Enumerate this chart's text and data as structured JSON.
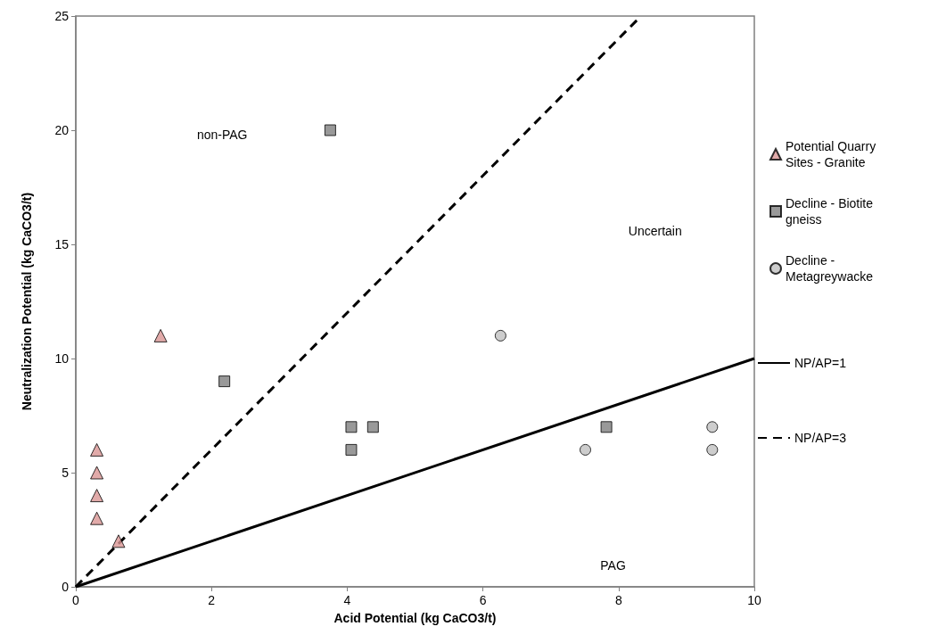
{
  "chart_data": {
    "type": "scatter",
    "xlabel": "Acid Potential (kg CaCO3/t)",
    "ylabel": "Neutralization Potential (kg CaCO3/t)",
    "xlim": [
      0,
      10
    ],
    "xticks": [
      0,
      2,
      4,
      6,
      8,
      10
    ],
    "ylim": [
      0,
      25
    ],
    "yticks": [
      0,
      5,
      10,
      15,
      20,
      25
    ],
    "grid": false,
    "legend": "right",
    "annotations": [
      "non-PAG",
      "Uncertain",
      "PAG"
    ],
    "series": [
      {
        "name": "Potential Quarry Sites - Granite",
        "color": "#d99594",
        "marker": "triangle",
        "x": [
          0.31,
          0.31,
          0.31,
          0.31,
          0.63,
          1.25
        ],
        "values": [
          6,
          5,
          4,
          3,
          2,
          11
        ]
      },
      {
        "name": "Decline - Biotite gneiss",
        "color": "#808080",
        "marker": "square",
        "x": [
          2.19,
          3.75,
          4.06,
          4.06,
          4.38,
          7.82
        ],
        "values": [
          9,
          20,
          7,
          6,
          7,
          7
        ]
      },
      {
        "name": "Decline - Metagreywacke",
        "color": "#c0c0c0",
        "marker": "circle",
        "x": [
          6.26,
          7.51,
          9.38,
          9.38
        ],
        "values": [
          11,
          6,
          7,
          6
        ]
      },
      {
        "name": "NP/AP=1",
        "type": "line",
        "color": "#000000",
        "marker": "none",
        "line_style": "solid",
        "x": [
          0,
          10
        ],
        "values": [
          0,
          10
        ]
      },
      {
        "name": "NP/AP=3",
        "type": "line",
        "color": "#000000",
        "marker": "none",
        "line_style": "dashed",
        "x": [
          0,
          8.33
        ],
        "values": [
          0,
          25
        ]
      }
    ]
  }
}
